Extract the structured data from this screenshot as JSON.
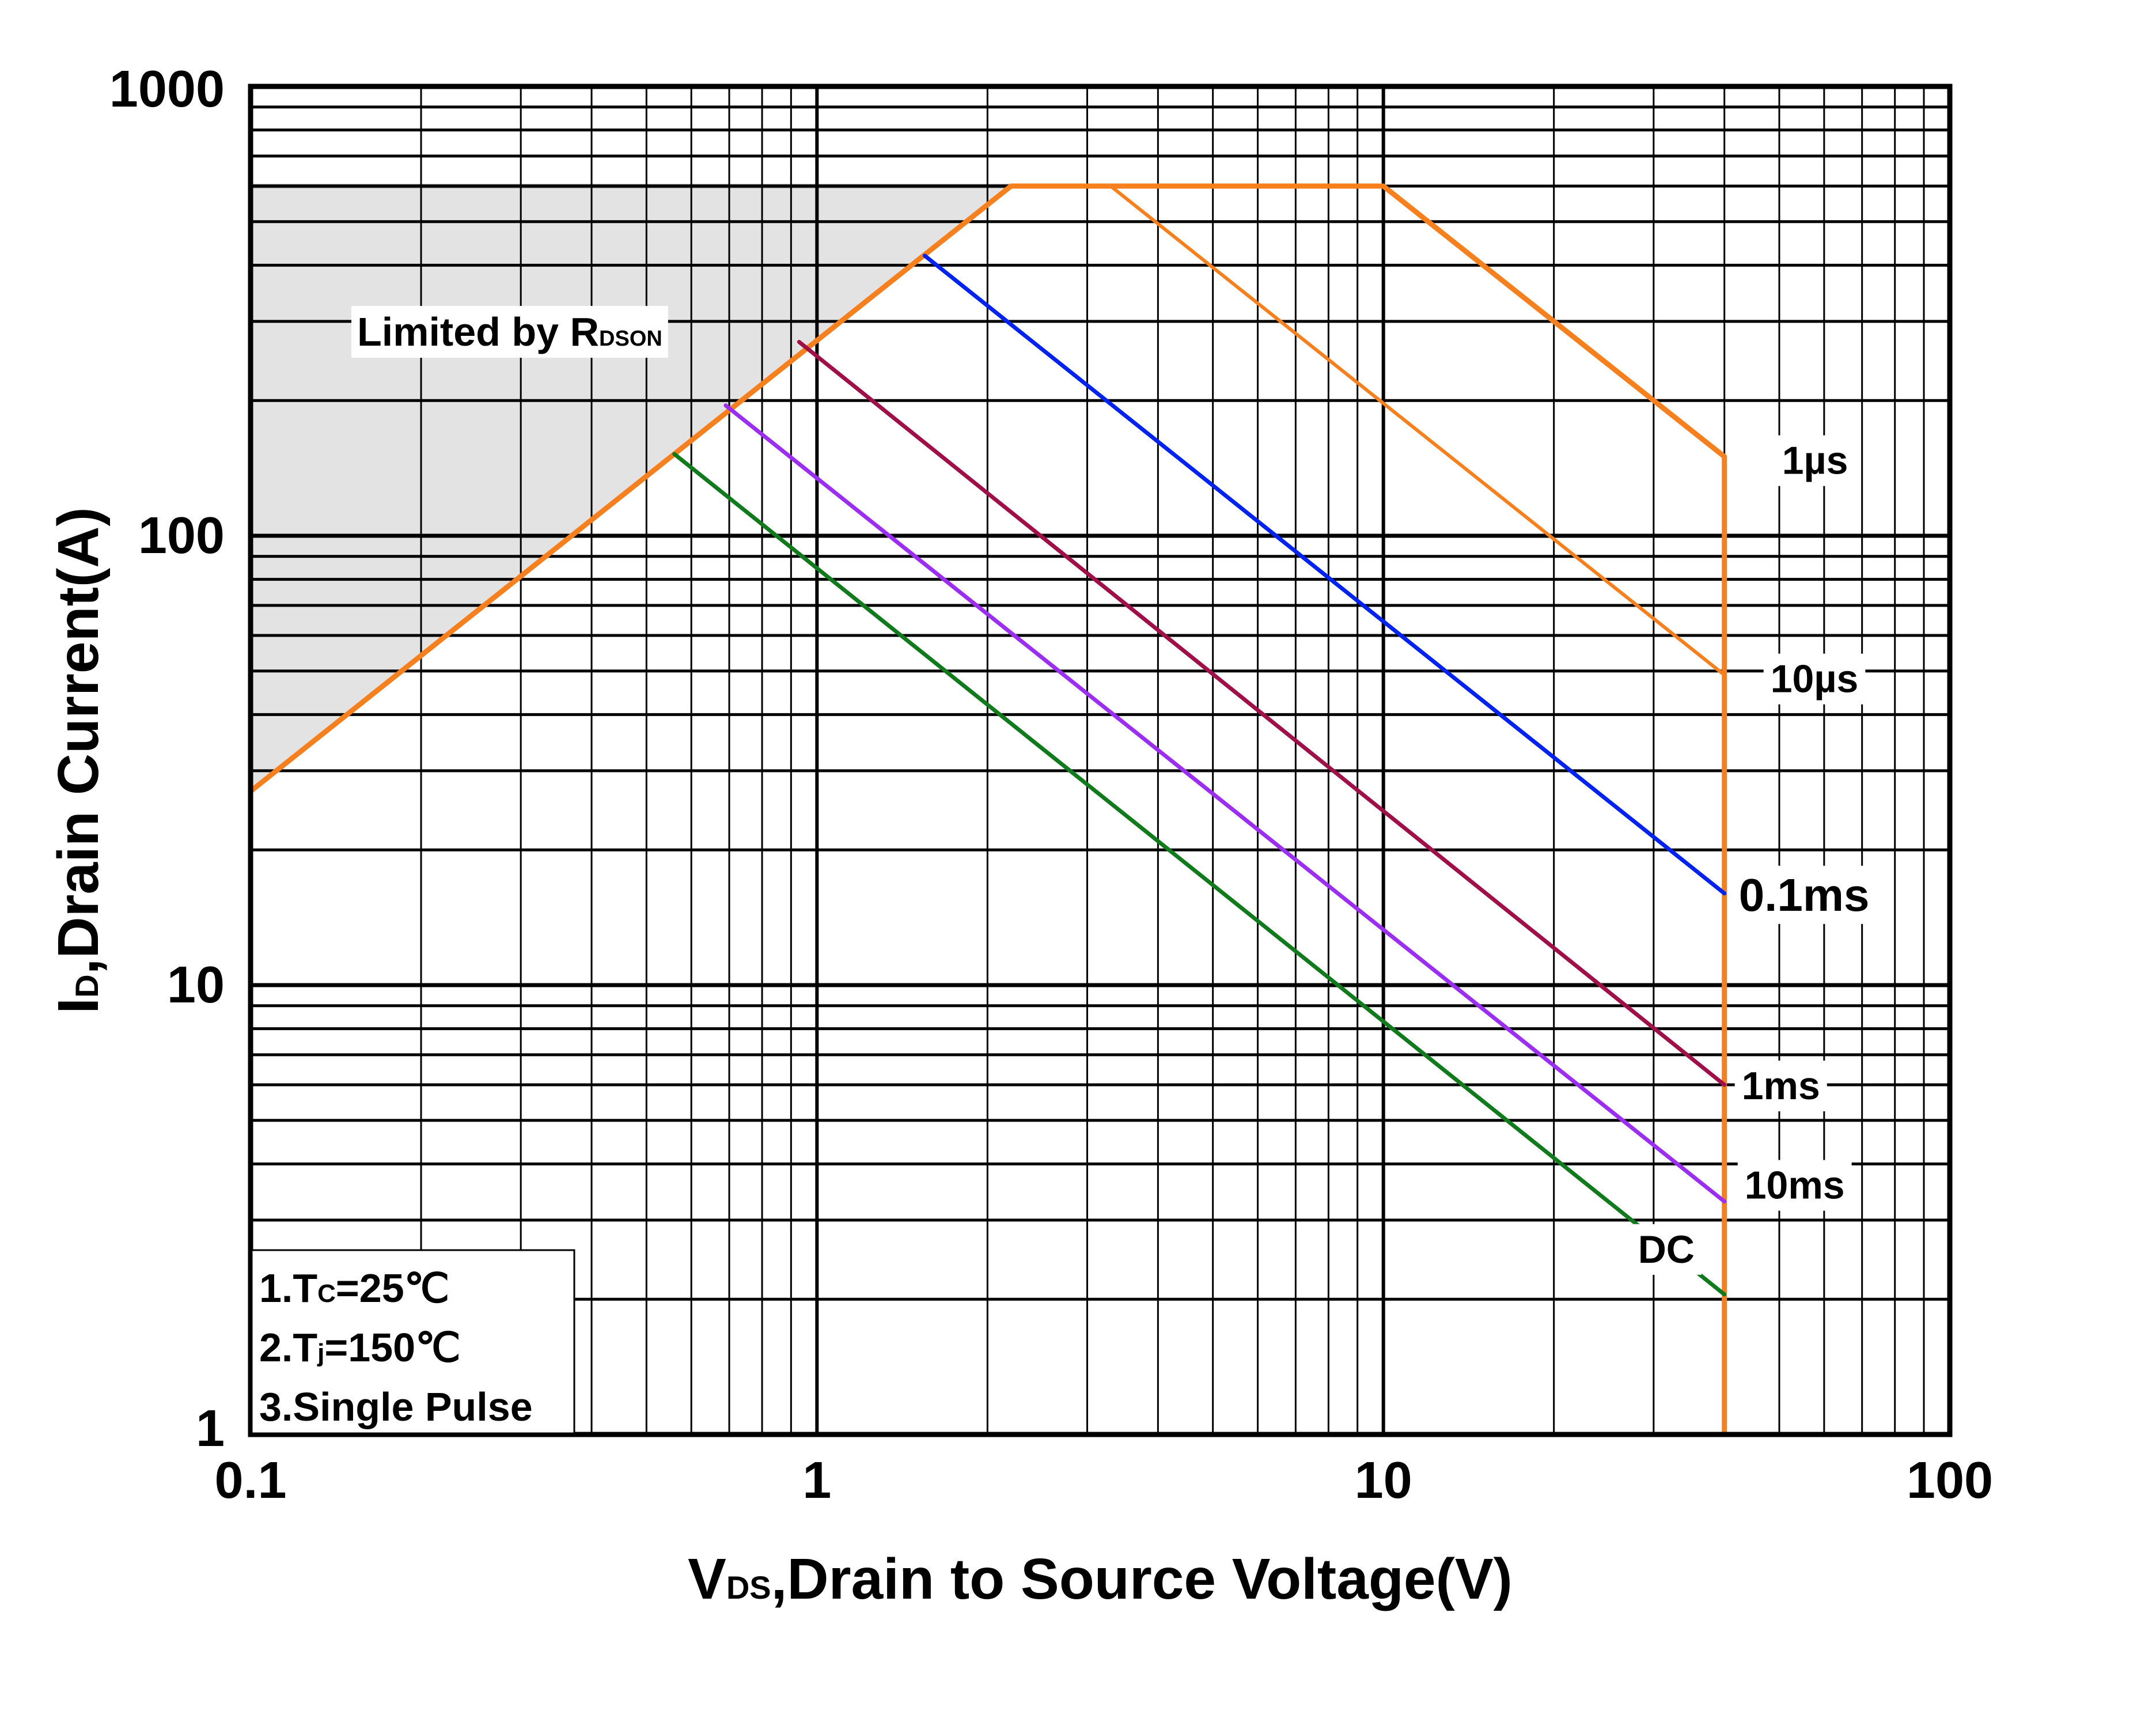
{
  "chart_data": {
    "type": "line",
    "scale": "log-log",
    "title": "",
    "xlabel": {
      "main": "V",
      "sub": "DS",
      "rest": ",Drain to Source Voltage(V)"
    },
    "ylabel": {
      "main": "I",
      "sub": "D",
      "rest": ",Drain Current(A)"
    },
    "xlim": [
      0.1,
      100
    ],
    "ylim": [
      1,
      1000
    ],
    "xticks": [
      {
        "v": 0.1,
        "label": "0.1"
      },
      {
        "v": 1,
        "label": "1"
      },
      {
        "v": 10,
        "label": "10"
      },
      {
        "v": 100,
        "label": "100"
      }
    ],
    "yticks": [
      {
        "v": 1,
        "label": "1"
      },
      {
        "v": 10,
        "label": "10"
      },
      {
        "v": 100,
        "label": "100"
      },
      {
        "v": 1000,
        "label": "1000"
      }
    ],
    "grid": true,
    "region": {
      "label_main": "Limited by R",
      "label_sub": "DSON",
      "fill": "#e3e3e3",
      "edge": "#666666",
      "polygon": [
        [
          0.1,
          27
        ],
        [
          0.1,
          600
        ],
        [
          2.2,
          600
        ]
      ]
    },
    "series": [
      {
        "name": "1µs",
        "color": "#f7801e",
        "width": 9,
        "points": [
          [
            0.1,
            27
          ],
          [
            2.2,
            600
          ],
          [
            10,
            600
          ],
          [
            40,
            150
          ],
          [
            40,
            1
          ]
        ],
        "label_at": [
          40,
          150
        ]
      },
      {
        "name": "10µs",
        "color": "#f7801e",
        "width": 6,
        "points": [
          [
            3.3,
            600
          ],
          [
            40,
            49
          ]
        ],
        "label_at": [
          40,
          49
        ]
      },
      {
        "name": "0.1ms",
        "color": "#0022ee",
        "width": 7,
        "points": [
          [
            1.55,
            420
          ],
          [
            40,
            16
          ]
        ],
        "label_at": [
          40,
          16
        ]
      },
      {
        "name": "1ms",
        "color": "#a01048",
        "width": 7,
        "points": [
          [
            0.93,
            270
          ],
          [
            40,
            6
          ]
        ],
        "label_at": [
          40,
          6
        ]
      },
      {
        "name": "10ms",
        "color": "#9b2ef0",
        "width": 7,
        "points": [
          [
            0.69,
            195
          ],
          [
            40,
            3.3
          ]
        ],
        "label_at": [
          40,
          3.3
        ]
      },
      {
        "name": "DC",
        "color": "#117a1c",
        "width": 7,
        "points": [
          [
            0.56,
            152
          ],
          [
            40,
            2.05
          ]
        ],
        "label_at": [
          40,
          2.05
        ]
      }
    ],
    "notes": [
      {
        "pre": "1.T",
        "sub": "C",
        "post": "=25℃"
      },
      {
        "pre": "2.T",
        "sub": "j",
        "post": "=150℃"
      },
      {
        "pre": "3.Single Pulse",
        "sub": "",
        "post": ""
      }
    ]
  }
}
